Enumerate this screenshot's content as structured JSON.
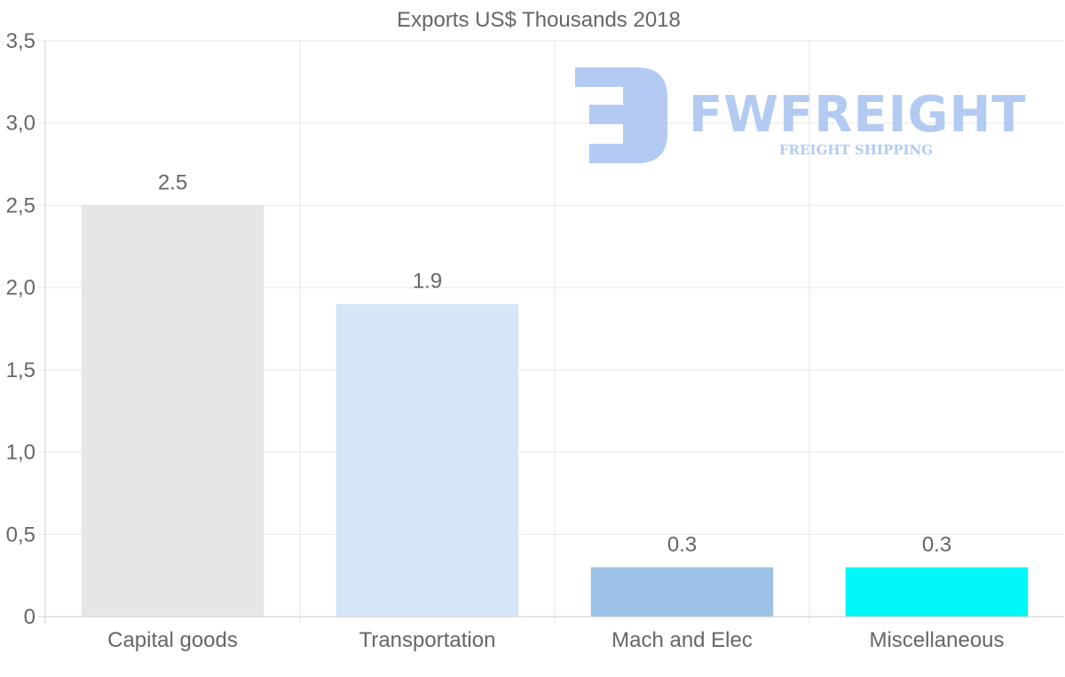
{
  "chart_data": {
    "type": "bar",
    "title": "Exports US$ Thousands 2018",
    "categories": [
      "Capital goods",
      "Transportation",
      "Mach and Elec",
      "Miscellaneous"
    ],
    "values": [
      2.5,
      1.9,
      0.3,
      0.3
    ],
    "value_labels": [
      "2.5",
      "1.9",
      "0.3",
      "0.3"
    ],
    "colors": [
      "#e6e6e6",
      "#d6e6f9",
      "#9bc2e6",
      "#00f7f7"
    ],
    "ylim": [
      0,
      3.5
    ],
    "yticks": [
      0,
      0.5,
      1.0,
      1.5,
      2.0,
      2.5,
      3.0,
      3.5
    ],
    "ytick_labels": [
      "0",
      "0,5",
      "1,0",
      "1,5",
      "2,0",
      "2,5",
      "3,0",
      "3,5"
    ],
    "xlabel": "",
    "ylabel": "",
    "grid": true
  },
  "watermark": {
    "brand": "FWFREIGHT",
    "tagline": "FREIGHT SHIPPING",
    "color": "#b3cbf2"
  }
}
